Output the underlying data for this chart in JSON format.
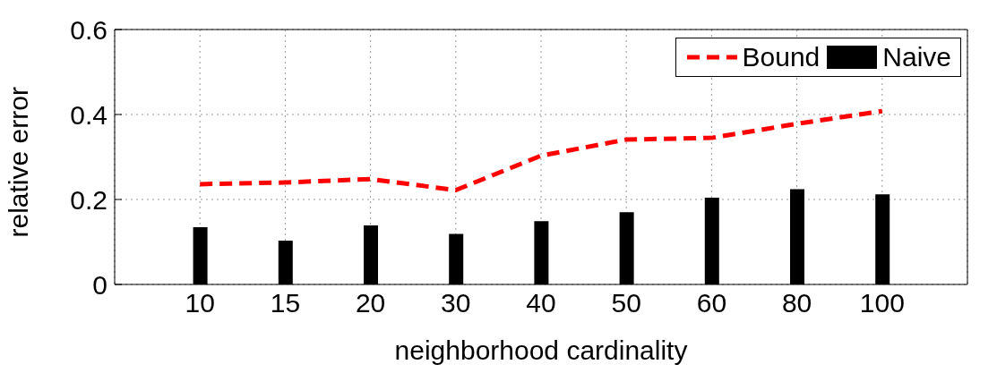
{
  "chart_data": {
    "type": "bar",
    "xlabel": "neighborhood cardinality",
    "ylabel": "relative error",
    "categories": [
      "10",
      "15",
      "20",
      "30",
      "40",
      "50",
      "60",
      "80",
      "100"
    ],
    "series": [
      {
        "name": "Bound",
        "type": "line",
        "color": "#ff0000",
        "line_style": "dashed",
        "values": [
          0.236,
          0.24,
          0.248,
          0.222,
          0.303,
          0.341,
          0.345,
          0.378,
          0.408
        ]
      },
      {
        "name": "Naive",
        "color": "#000000",
        "values": [
          0.135,
          0.103,
          0.139,
          0.119,
          0.149,
          0.17,
          0.204,
          0.224,
          0.212
        ]
      }
    ],
    "ylim": [
      0,
      0.6
    ],
    "yticks": [
      0,
      {
        "value": 0.2,
        "label": "0.2"
      },
      {
        "value": 0.4,
        "label": "0.4"
      },
      {
        "value": 0.6,
        "label": "0.6"
      }
    ],
    "grid": true,
    "legend": "top right",
    "marker": "none"
  }
}
